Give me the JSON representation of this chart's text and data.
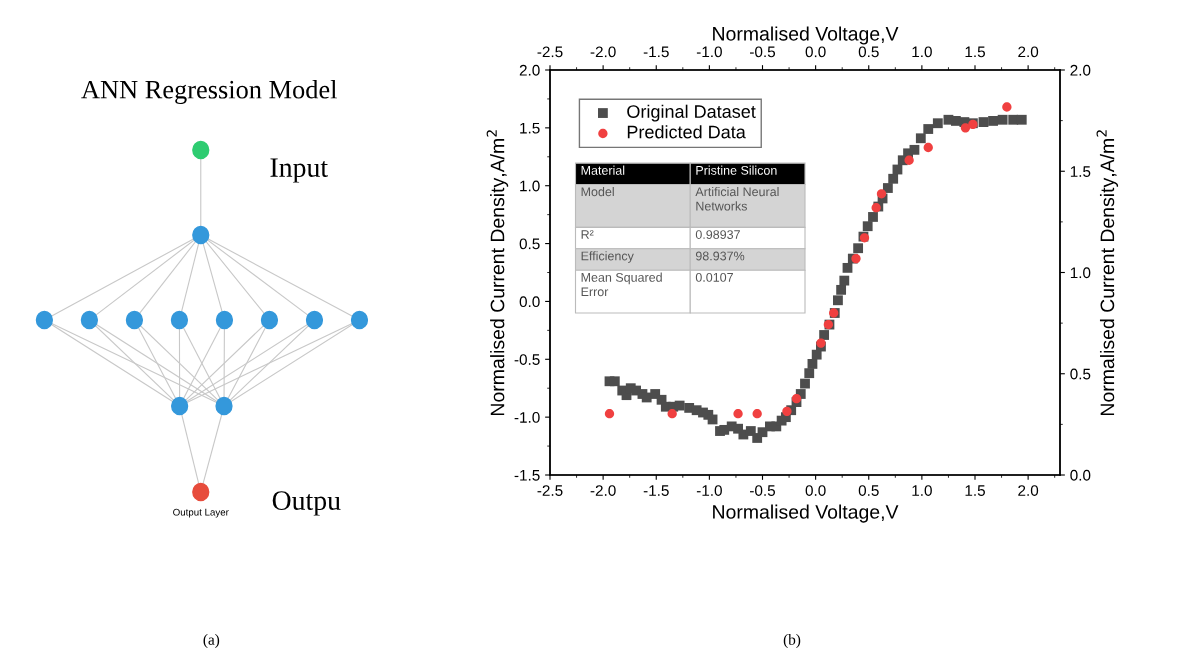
{
  "chart_data": [
    {
      "type": "other",
      "title": "ANN Regression Model",
      "annotations": [
        "Input",
        "Outpu",
        "Output Layer",
        "(a)"
      ]
    },
    {
      "type": "scatter",
      "xlabel": "Normalised Voltage,V",
      "x2label": "Normalised Voltage,V",
      "ylabel": "Normalised Current Density,A/m$^{2}$",
      "y2label": "Normalised Current Density,A/m$^{2}$",
      "xlim": [
        -2.5,
        2.3
      ],
      "xticks": [
        {
          "value": -2.5,
          "label": "-2.5"
        },
        {
          "value": -2.0,
          "label": "-2.0"
        },
        {
          "value": -1.5,
          "label": "-1.5"
        },
        {
          "value": -1.0,
          "label": "-1.0"
        },
        {
          "value": -0.5,
          "label": "-0.5"
        },
        {
          "value": 0,
          "label": "0.0"
        },
        {
          "value": 0.5,
          "label": "0.5"
        },
        {
          "value": 1.0,
          "label": "1.0"
        },
        {
          "value": 1.5,
          "label": "1.5"
        },
        {
          "value": 2.0,
          "label": "2.0"
        }
      ],
      "x2lim": [
        -2.5,
        2.3
      ],
      "x2ticks": [
        {
          "value": -2.5,
          "label": "-2.5"
        },
        {
          "value": -2.0,
          "label": "-2.0"
        },
        {
          "value": -1.5,
          "label": "-1.5"
        },
        {
          "value": -1.0,
          "label": "-1.0"
        },
        {
          "value": -0.5,
          "label": "-0.5"
        },
        {
          "value": 0,
          "label": "0.0"
        },
        {
          "value": 0.5,
          "label": "0.5"
        },
        {
          "value": 1.0,
          "label": "1.0"
        },
        {
          "value": 1.5,
          "label": "1.5"
        },
        {
          "value": 2.0,
          "label": "2.0"
        }
      ],
      "ylim": [
        -1.5,
        2.0
      ],
      "yticks": [
        {
          "value": -1.5,
          "label": "-1.5"
        },
        {
          "value": -1.0,
          "label": "-1.0"
        },
        {
          "value": -0.5,
          "label": "-0.5"
        },
        {
          "value": 0,
          "label": "0.0"
        },
        {
          "value": 0.5,
          "label": "0.5"
        },
        {
          "value": 1.0,
          "label": "1.0"
        },
        {
          "value": 1.5,
          "label": "1.5"
        },
        {
          "value": 2.0,
          "label": "2.0"
        }
      ],
      "y2lim": [
        0,
        2.0
      ],
      "y2ticks": [
        {
          "value": 0,
          "label": "0.0"
        },
        {
          "value": 0.5,
          "label": "0.5"
        },
        {
          "value": 1.0,
          "label": "1.0"
        },
        {
          "value": 1.5,
          "label": "1.5"
        },
        {
          "value": 2.0,
          "label": "2.0"
        }
      ],
      "grid": false,
      "legend": "top left",
      "series": [
        {
          "name": "Original Dataset",
          "color": "#4d4d4d",
          "marker": "square",
          "x": [
            -1.94,
            -1.89,
            -1.82,
            -1.78,
            -1.74,
            -1.69,
            -1.63,
            -1.59,
            -1.51,
            -1.45,
            -1.41,
            -1.34,
            -1.28,
            -1.19,
            -1.12,
            -1.06,
            -1.01,
            -0.97,
            -0.9,
            -0.86,
            -0.79,
            -0.73,
            -0.68,
            -0.61,
            -0.55,
            -0.5,
            -0.43,
            -0.37,
            -0.32,
            -0.28,
            -0.23,
            -0.18,
            -0.14,
            -0.1,
            -0.06,
            -0.03,
            0.01,
            0.05,
            0.08,
            0.13,
            0.18,
            0.21,
            0.24,
            0.27,
            0.3,
            0.35,
            0.4,
            0.45,
            0.49,
            0.54,
            0.59,
            0.63,
            0.68,
            0.73,
            0.77,
            0.82,
            0.87,
            0.93,
            0.99,
            1.06,
            1.15,
            1.25,
            1.32,
            1.4,
            1.48,
            1.58,
            1.67,
            1.76,
            1.86,
            1.94
          ],
          "values": [
            -0.69,
            -0.69,
            -0.77,
            -0.81,
            -0.75,
            -0.77,
            -0.8,
            -0.83,
            -0.8,
            -0.85,
            -0.91,
            -0.91,
            -0.9,
            -0.92,
            -0.94,
            -0.96,
            -0.98,
            -1.02,
            -1.12,
            -1.11,
            -1.08,
            -1.1,
            -1.15,
            -1.12,
            -1.18,
            -1.13,
            -1.08,
            -1.08,
            -1.03,
            -1.0,
            -0.94,
            -0.87,
            -0.8,
            -0.71,
            -0.62,
            -0.54,
            -0.46,
            -0.39,
            -0.29,
            -0.2,
            -0.1,
            0.01,
            0.1,
            0.18,
            0.29,
            0.37,
            0.46,
            0.56,
            0.65,
            0.73,
            0.82,
            0.89,
            0.98,
            1.06,
            1.14,
            1.22,
            1.28,
            1.31,
            1.41,
            1.49,
            1.54,
            1.57,
            1.56,
            1.55,
            1.54,
            1.55,
            1.56,
            1.57,
            1.57,
            1.57
          ]
        },
        {
          "name": "Predicted Data",
          "color": "#f04040",
          "marker": "circle",
          "x": [
            -1.94,
            -1.35,
            -0.73,
            -0.55,
            -0.27,
            -0.18,
            0.05,
            0.12,
            0.17,
            0.38,
            0.46,
            0.57,
            0.62,
            0.88,
            1.06,
            1.41,
            1.48,
            1.8
          ],
          "values": [
            -0.97,
            -0.97,
            -0.97,
            -0.97,
            -0.95,
            -0.84,
            -0.36,
            -0.2,
            -0.1,
            0.37,
            0.55,
            0.81,
            0.93,
            1.22,
            1.33,
            1.5,
            1.53,
            1.68
          ]
        }
      ],
      "annotations": [
        "Material",
        "Pristine Silicon",
        "Model",
        "Artificial Neural\nNetworks",
        "R²",
        "0.98937",
        "Efficiency",
        "98.937%",
        "Mean Squared\nError",
        "0.0107",
        "(b)"
      ]
    }
  ]
}
